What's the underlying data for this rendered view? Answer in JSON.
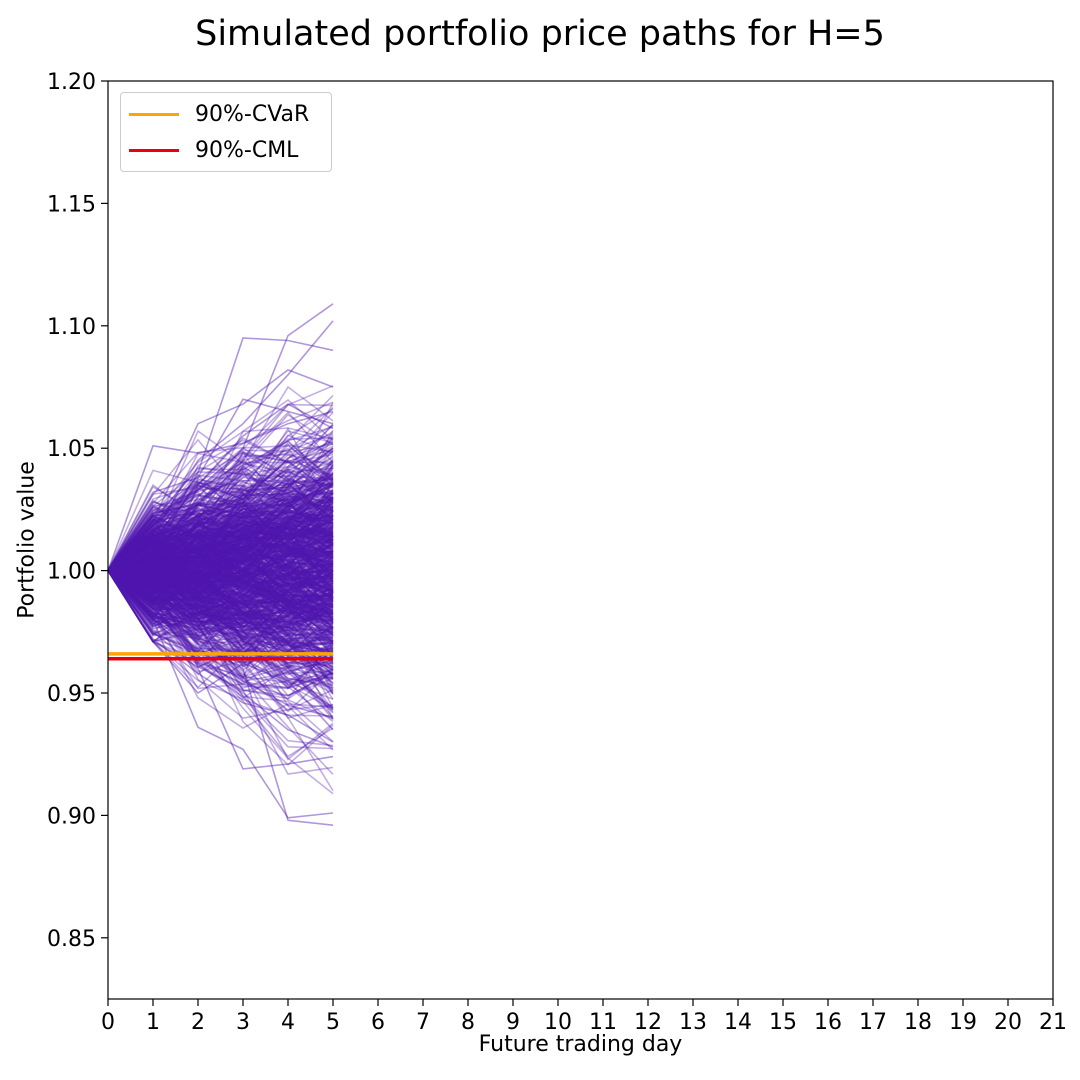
{
  "chart_data": {
    "type": "line",
    "title": "Simulated portfolio price paths for H=5",
    "xlabel": "Future trading day",
    "ylabel": "Portfolio value",
    "xlim": [
      0,
      21
    ],
    "ylim": [
      0.825,
      1.2
    ],
    "x_ticks": [
      "0",
      "1",
      "2",
      "3",
      "4",
      "5",
      "6",
      "7",
      "8",
      "9",
      "10",
      "11",
      "12",
      "13",
      "14",
      "15",
      "16",
      "17",
      "18",
      "19",
      "20",
      "21"
    ],
    "y_ticks": [
      "0.85",
      "0.90",
      "0.95",
      "1.00",
      "1.05",
      "1.10",
      "1.15",
      "1.20"
    ],
    "path_color": "#5016b0",
    "horizon_days": [
      0,
      1,
      2,
      3,
      4,
      5
    ],
    "path_start_value": 1.0,
    "path_envelope": {
      "upper": [
        1.0,
        1.051,
        1.06,
        1.095,
        1.096,
        1.109
      ],
      "lower": [
        1.0,
        0.971,
        0.936,
        0.919,
        0.898,
        0.896
      ]
    },
    "sample_paths": [
      [
        1.0,
        1.051,
        1.048,
        1.052,
        1.06,
        1.065
      ],
      [
        1.0,
        1.02,
        1.06,
        1.068,
        1.082,
        1.075
      ],
      [
        1.0,
        1.01,
        1.04,
        1.095,
        1.094,
        1.09
      ],
      [
        1.0,
        1.005,
        1.03,
        1.05,
        1.096,
        1.109
      ],
      [
        1.0,
        1.015,
        1.045,
        1.06,
        1.08,
        1.102
      ],
      [
        1.0,
        1.032,
        1.038,
        1.07,
        1.065,
        1.06
      ],
      [
        1.0,
        0.99,
        1.035,
        1.055,
        1.068,
        1.058
      ],
      [
        1.0,
        0.98,
        0.936,
        0.927,
        0.899,
        0.901
      ],
      [
        1.0,
        0.975,
        0.96,
        0.919,
        0.921,
        0.924
      ],
      [
        1.0,
        0.99,
        0.97,
        0.96,
        0.898,
        0.896
      ],
      [
        1.0,
        0.972,
        0.958,
        0.946,
        0.941,
        0.93
      ],
      [
        1.0,
        0.985,
        0.962,
        0.95,
        0.935,
        0.928
      ],
      [
        1.0,
        0.995,
        0.98,
        0.955,
        0.945,
        0.94
      ],
      [
        1.0,
        0.971,
        0.95,
        0.962,
        0.955,
        0.935
      ]
    ],
    "series": [
      {
        "name": "90%-CVaR",
        "value": 0.966,
        "x_range": [
          0,
          5
        ],
        "color": "#ffa500"
      },
      {
        "name": "90%-CML",
        "value": 0.964,
        "x_range": [
          0,
          5
        ],
        "color": "#e8000b"
      }
    ],
    "legend_position": "upper-left",
    "grid": false
  }
}
